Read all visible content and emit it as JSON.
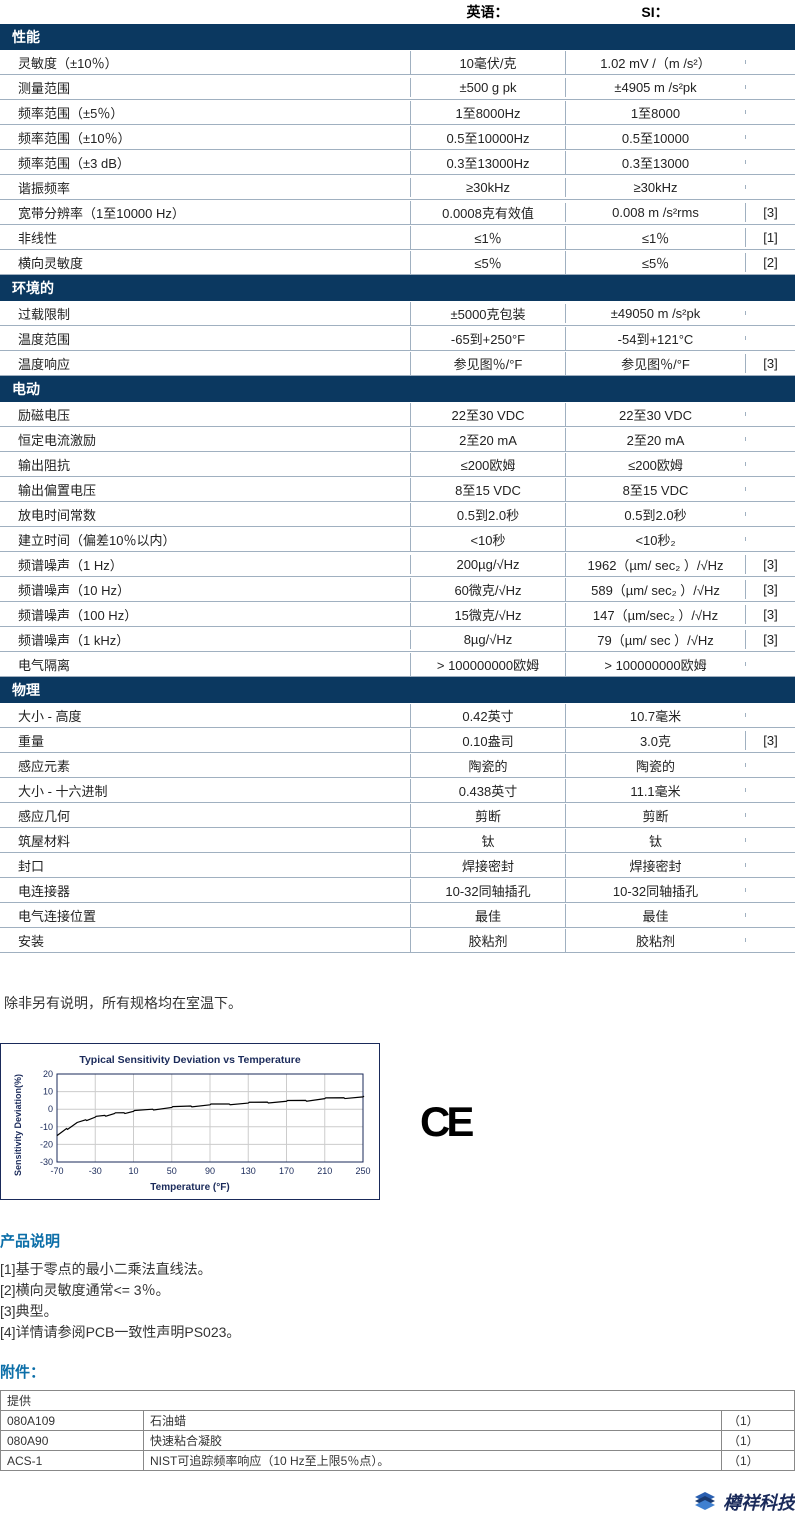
{
  "header": {
    "col_en": "英语：",
    "col_si": "SI："
  },
  "sections": [
    {
      "title": "性能",
      "rows": [
        {
          "p": "灵敏度（±10％）",
          "en": "10毫伏/克",
          "si": "1.02 mV /（m /s²）",
          "n": ""
        },
        {
          "p": "测量范围",
          "en": "±500 g pk",
          "si": "±4905 m /s²pk",
          "n": ""
        },
        {
          "p": "频率范围（±5％）",
          "en": "1至8000Hz",
          "si": "1至8000",
          "n": ""
        },
        {
          "p": "频率范围（±10％）",
          "en": "0.5至10000Hz",
          "si": "0.5至10000",
          "n": ""
        },
        {
          "p": "频率范围（±3 dB）",
          "en": "0.3至13000Hz",
          "si": "0.3至13000",
          "n": ""
        },
        {
          "p": "谐振频率",
          "en": "≥30kHz",
          "si": "≥30kHz",
          "n": ""
        },
        {
          "p": "宽带分辨率（1至10000 Hz）",
          "en": "0.0008克有效值",
          "si": "0.008 m /s²rms",
          "n": "[3]"
        },
        {
          "p": "非线性",
          "en": "≤1％",
          "si": "≤1％",
          "n": "[1]"
        },
        {
          "p": "横向灵敏度",
          "en": "≤5％",
          "si": "≤5％",
          "n": "[2]"
        }
      ]
    },
    {
      "title": "环境的",
      "rows": [
        {
          "p": "过载限制",
          "en": "±5000克包装",
          "si": "±49050 m /s²pk",
          "n": ""
        },
        {
          "p": "温度范围",
          "en": "-65到+250°F",
          "si": "-54到+121°C",
          "n": ""
        },
        {
          "p": "温度响应",
          "en": "参见图％/°F",
          "si": "参见图％/°F",
          "n": "[3]"
        }
      ]
    },
    {
      "title": "电动",
      "rows": [
        {
          "p": "励磁电压",
          "en": "22至30 VDC",
          "si": "22至30 VDC",
          "n": ""
        },
        {
          "p": "恒定电流激励",
          "en": "2至20 mA",
          "si": "2至20 mA",
          "n": ""
        },
        {
          "p": "输出阻抗",
          "en": "≤200欧姆",
          "si": "≤200欧姆",
          "n": ""
        },
        {
          "p": "输出偏置电压",
          "en": "8至15 VDC",
          "si": "8至15 VDC",
          "n": ""
        },
        {
          "p": "放电时间常数",
          "en": "0.5到2.0秒",
          "si": "0.5到2.0秒",
          "n": ""
        },
        {
          "p": "建立时间（偏差10％以内）",
          "en": "<10秒",
          "si": "<10秒₂",
          "n": ""
        },
        {
          "p": "频谱噪声（1 Hz）",
          "en": "200µg/√Hz",
          "si": "1962（µm/ sec₂ ）/√Hz",
          "n": "[3]"
        },
        {
          "p": "频谱噪声（10 Hz）",
          "en": "60微克/√Hz",
          "si": "589（µm/ sec₂ ）/√Hz",
          "n": "[3]"
        },
        {
          "p": "频谱噪声（100 Hz）",
          "en": "15微克/√Hz",
          "si": "147（µm/sec₂  ）/√Hz",
          "n": "[3]"
        },
        {
          "p": "频谱噪声（1 kHz）",
          "en": "8µg/√Hz",
          "si": "79（µm/ sec   ）/√Hz",
          "n": "[3]"
        },
        {
          "p": "电气隔离",
          "en": "> 100000000欧姆",
          "si": "> 100000000欧姆",
          "n": ""
        }
      ]
    },
    {
      "title": "物理",
      "rows": [
        {
          "p": "大小 - 高度",
          "en": "0.42英寸",
          "si": "10.7毫米",
          "n": ""
        },
        {
          "p": "重量",
          "en": "0.10盎司",
          "si": "3.0克",
          "n": "[3]"
        },
        {
          "p": "感应元素",
          "en": "陶瓷的",
          "si": "陶瓷的",
          "n": ""
        },
        {
          "p": "大小 - 十六进制",
          "en": "0.438英寸",
          "si": "11.1毫米",
          "n": ""
        },
        {
          "p": "感应几何",
          "en": "剪断",
          "si": "剪断",
          "n": ""
        },
        {
          "p": "筑屋材料",
          "en": "钛",
          "si": "钛",
          "n": ""
        },
        {
          "p": "封口",
          "en": "焊接密封",
          "si": "焊接密封",
          "n": ""
        },
        {
          "p": "电连接器",
          "en": "10-32同轴插孔",
          "si": "10-32同轴插孔",
          "n": ""
        },
        {
          "p": "电气连接位置",
          "en": "最佳",
          "si": "最佳",
          "n": ""
        },
        {
          "p": "安装",
          "en": "胶粘剂",
          "si": "胶粘剂",
          "n": ""
        }
      ]
    }
  ],
  "room_temp_note": "除非另有说明，所有规格均在室温下。",
  "chart": {
    "title": "Typical Sensitivity Deviation vs Temperature",
    "ylabel": "Sensitivity Deviation(%)",
    "xlabel": "Temperature (°F)",
    "xticks": [
      "-70",
      "-30",
      "10",
      "50",
      "90",
      "130",
      "170",
      "210",
      "250"
    ],
    "yticks": [
      "20",
      "10",
      "0",
      "-10",
      "-20",
      "-30"
    ],
    "bg": "#ffffff",
    "grid": "#cccccc",
    "line": "#000000",
    "frame": "#1a2a5a",
    "points": [
      [
        -70,
        -15
      ],
      [
        -60,
        -11
      ],
      [
        -50,
        -8
      ],
      [
        -40,
        -6
      ],
      [
        -30,
        -4.5
      ],
      [
        -20,
        -3.5
      ],
      [
        -10,
        -2.5
      ],
      [
        0,
        -2
      ],
      [
        10,
        -1.2
      ],
      [
        30,
        0
      ],
      [
        50,
        1
      ],
      [
        70,
        1.8
      ],
      [
        90,
        2.5
      ],
      [
        110,
        3
      ],
      [
        130,
        3.5
      ],
      [
        150,
        4
      ],
      [
        170,
        4.5
      ],
      [
        190,
        5
      ],
      [
        210,
        6
      ],
      [
        230,
        6.5
      ],
      [
        250,
        7
      ]
    ],
    "xmin": -70,
    "xmax": 250,
    "ymin": -30,
    "ymax": 20
  },
  "ce_text": "CE",
  "product_notes": {
    "title": "产品说明",
    "items": [
      "[1]基于零点的最小二乘法直线法。",
      "[2]横向灵敏度通常<= 3％。",
      "[3]典型。",
      "[4]详情请参阅PCB一致性声明PS023。"
    ]
  },
  "accessories": {
    "title": "附件：",
    "group": "提供",
    "rows": [
      {
        "code": "080A109",
        "desc": "石油蜡",
        "q": "（1）"
      },
      {
        "code": "080A90",
        "desc": "快速粘合凝胶",
        "q": "（1）"
      },
      {
        "code": "ACS-1",
        "desc": "NIST可追踪频率响应（10 Hz至上限5％点）。",
        "q": "（1）"
      }
    ]
  },
  "brand": "樽祥科技"
}
